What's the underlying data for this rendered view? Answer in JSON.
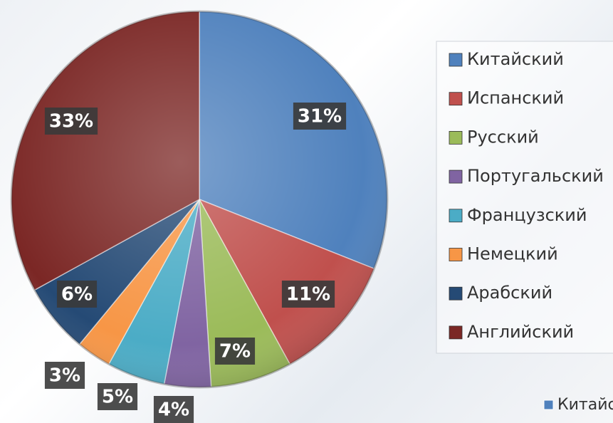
{
  "chart_data": {
    "type": "pie",
    "categories": [
      "Китайский",
      "Испанский",
      "Русский",
      "Португальский",
      "Французский",
      "Немецкий",
      "Арабский",
      "Английский"
    ],
    "values": [
      31,
      11,
      7,
      4,
      5,
      3,
      6,
      33
    ],
    "value_labels": [
      "31%",
      "11%",
      "7%",
      "4%",
      "5%",
      "3%",
      "6%",
      "33%"
    ],
    "colors": [
      "#4f81bd",
      "#c0504d",
      "#9bbb59",
      "#8064a2",
      "#4bacc6",
      "#f79646",
      "#254a75",
      "#7b2725"
    ],
    "legend": "right"
  }
}
